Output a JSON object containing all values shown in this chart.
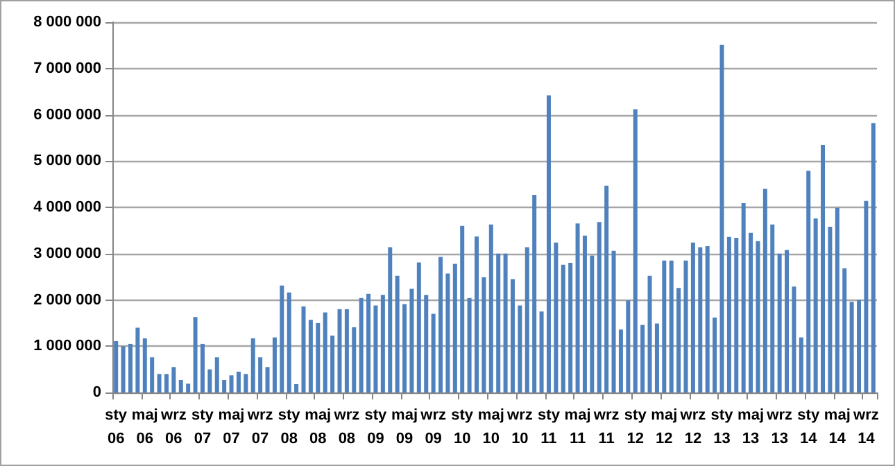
{
  "chart_data": {
    "type": "bar",
    "color": "#4f81bd",
    "grid": "y",
    "categories": [
      "sty\n06",
      null,
      null,
      null,
      "maj\n06",
      null,
      null,
      null,
      "wrz\n06",
      null,
      null,
      null,
      "sty\n07",
      null,
      null,
      null,
      "maj\n07",
      null,
      null,
      null,
      "wrz\n07",
      null,
      null,
      null,
      "sty\n08",
      null,
      null,
      null,
      "maj\n08",
      null,
      null,
      null,
      "wrz\n08",
      null,
      null,
      null,
      "sty\n09",
      null,
      null,
      null,
      "maj\n09",
      null,
      null,
      null,
      "wrz\n09",
      null,
      null,
      null,
      "sty\n10",
      null,
      null,
      null,
      "maj\n10",
      null,
      null,
      null,
      "wrz\n10",
      null,
      null,
      null,
      "sty\n11",
      null,
      null,
      null,
      "maj\n11",
      null,
      null,
      null,
      "wrz\n11",
      null,
      null,
      null,
      "sty\n12",
      null,
      null,
      null,
      "maj\n12",
      null,
      null,
      null,
      "wrz\n12",
      null,
      null,
      null,
      "sty\n13",
      null,
      null,
      null,
      "maj\n13",
      null,
      null,
      null,
      "wrz\n13",
      null,
      null,
      null,
      "sty\n14",
      null,
      null,
      null,
      "maj\n14",
      null,
      null,
      null,
      "wrz\n14",
      null
    ],
    "values": [
      1110000,
      1000000,
      1050000,
      1400000,
      1170000,
      760000,
      400000,
      400000,
      550000,
      270000,
      190000,
      1630000,
      1050000,
      500000,
      760000,
      270000,
      370000,
      450000,
      400000,
      1170000,
      760000,
      550000,
      1190000,
      2310000,
      2160000,
      180000,
      1860000,
      1570000,
      1500000,
      1730000,
      1230000,
      1800000,
      1800000,
      1410000,
      2040000,
      2130000,
      1880000,
      2110000,
      3140000,
      2520000,
      1910000,
      2240000,
      2810000,
      2110000,
      1700000,
      2930000,
      2570000,
      2780000,
      3600000,
      2040000,
      3370000,
      2490000,
      3630000,
      3000000,
      3000000,
      2450000,
      1880000,
      3140000,
      4270000,
      1750000,
      6420000,
      3240000,
      2760000,
      2800000,
      3650000,
      3390000,
      2960000,
      3680000,
      4470000,
      3060000,
      1360000,
      1990000,
      6120000,
      1460000,
      2520000,
      1490000,
      2850000,
      2850000,
      2260000,
      2850000,
      3240000,
      3140000,
      3160000,
      1620000,
      7510000,
      3360000,
      3340000,
      4090000,
      3450000,
      3270000,
      4400000,
      3630000,
      3000000,
      3080000,
      2290000,
      1190000,
      4790000,
      3760000,
      5350000,
      3580000,
      3990000,
      2680000,
      1960000,
      2000000,
      4140000,
      5820000
    ],
    "ylim": [
      0,
      8000000
    ],
    "yticks": [
      {
        "value": 0,
        "label": "0"
      },
      {
        "value": 1000000,
        "label": "1 000 000"
      },
      {
        "value": 2000000,
        "label": "2 000 000"
      },
      {
        "value": 3000000,
        "label": "3 000 000"
      },
      {
        "value": 4000000,
        "label": "4 000 000"
      },
      {
        "value": 5000000,
        "label": "5 000 000"
      },
      {
        "value": 6000000,
        "label": "6 000 000"
      },
      {
        "value": 7000000,
        "label": "7 000 000"
      },
      {
        "value": 8000000,
        "label": "8 000 000"
      }
    ]
  }
}
